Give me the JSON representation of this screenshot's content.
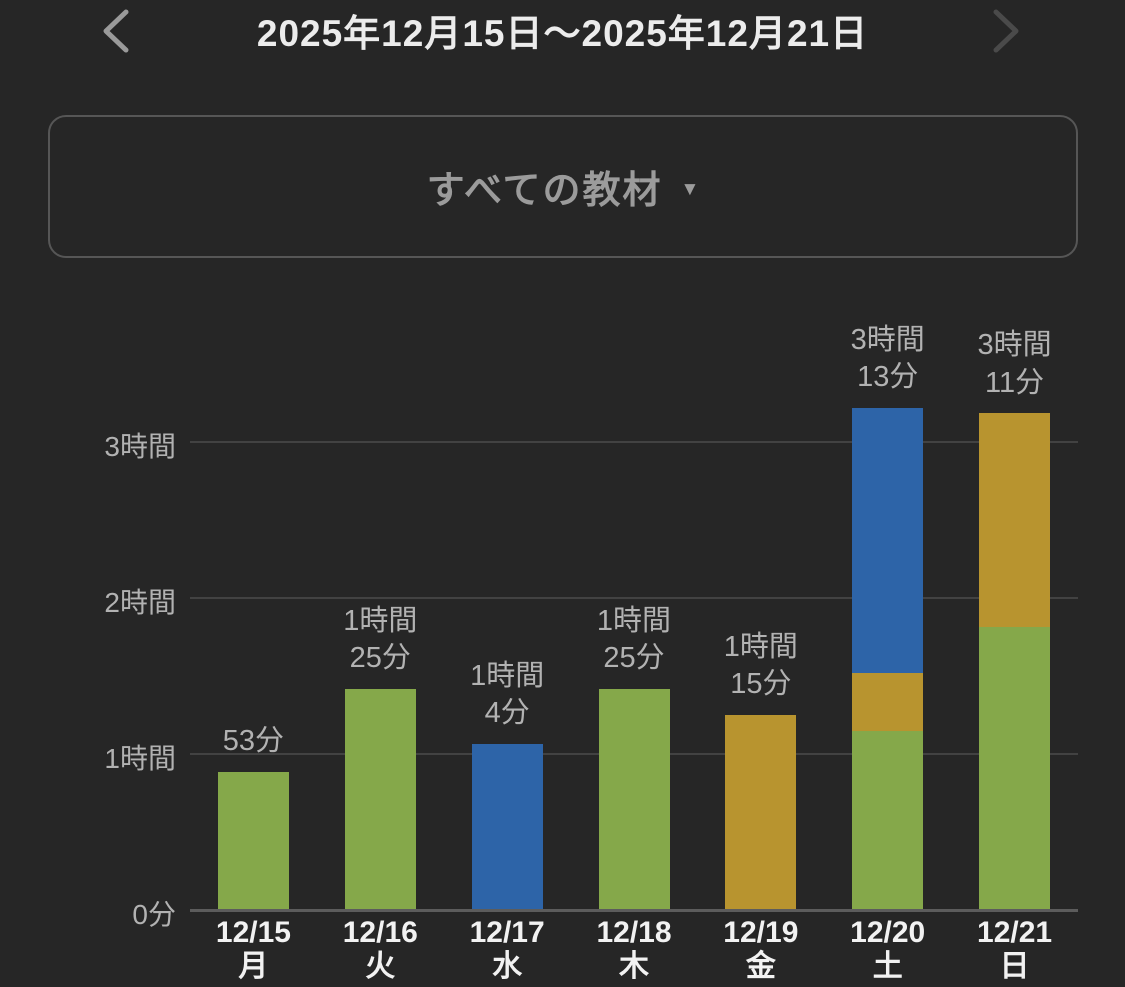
{
  "header": {
    "title": "2025年12月15日～2025年12月21日"
  },
  "filter": {
    "label": "すべての教材",
    "caret": "▼"
  },
  "colors": {
    "background": "#262626",
    "green": "#85a84a",
    "gold": "#b8942f",
    "blue": "#2d64a8",
    "grid": "#424242",
    "axis_baseline": "#5c5c5c",
    "tick_text": "#b2b2b2",
    "value_text": "#b2b2b2",
    "xaxis_text": "#f2f2f2",
    "title_text": "#ececec",
    "filter_text": "#9b9b9b",
    "filter_border": "#565656",
    "prev_chevron": "#9a9a9a",
    "next_chevron": "#4a4a4a"
  },
  "chart_data": {
    "type": "bar",
    "stacked": true,
    "title": "",
    "xlabel": "",
    "ylabel": "",
    "ylim_minutes": [
      0,
      210
    ],
    "grid": true,
    "legend": false,
    "y_ticks": [
      {
        "minutes": 0,
        "label": "0分"
      },
      {
        "minutes": 60,
        "label": "1時間"
      },
      {
        "minutes": 120,
        "label": "2時間"
      },
      {
        "minutes": 180,
        "label": "3時間"
      }
    ],
    "categories": [
      {
        "date": "12/15",
        "weekday": "月"
      },
      {
        "date": "12/16",
        "weekday": "火"
      },
      {
        "date": "12/17",
        "weekday": "水"
      },
      {
        "date": "12/18",
        "weekday": "木"
      },
      {
        "date": "12/19",
        "weekday": "金"
      },
      {
        "date": "12/20",
        "weekday": "土"
      },
      {
        "date": "12/21",
        "weekday": "日"
      }
    ],
    "series": [
      {
        "name": "green",
        "color": "#85a84a",
        "values_minutes": [
          53,
          85,
          0,
          85,
          0,
          69,
          109
        ]
      },
      {
        "name": "gold",
        "color": "#b8942f",
        "values_minutes": [
          0,
          0,
          0,
          0,
          75,
          22,
          82
        ]
      },
      {
        "name": "blue",
        "color": "#2d64a8",
        "values_minutes": [
          0,
          0,
          64,
          0,
          0,
          102,
          0
        ]
      }
    ],
    "totals_minutes": [
      53,
      85,
      64,
      85,
      75,
      193,
      191
    ],
    "value_labels": [
      [
        "53分"
      ],
      [
        "1時間",
        "25分"
      ],
      [
        "1時間",
        "4分"
      ],
      [
        "1時間",
        "25分"
      ],
      [
        "1時間",
        "15分"
      ],
      [
        "3時間",
        "13分"
      ],
      [
        "3時間",
        "11分"
      ]
    ]
  }
}
